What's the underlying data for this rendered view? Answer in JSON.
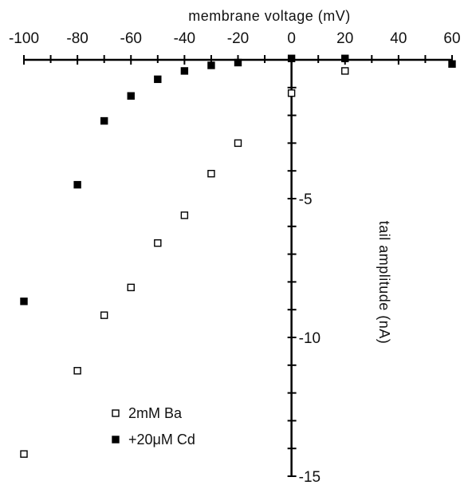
{
  "chart_data": {
    "type": "scatter",
    "title": "",
    "xlabel": "membrane voltage (mV)",
    "ylabel": "tail amplitude (nA)",
    "xlim": [
      -100,
      60
    ],
    "ylim": [
      -15,
      0
    ],
    "x_ticks": [
      -100,
      -80,
      -60,
      -40,
      -20,
      0,
      20,
      40,
      60
    ],
    "x_tick_labels": [
      "-100",
      "-80",
      "-60",
      "-40",
      "-20",
      "0",
      "20",
      "40",
      "60"
    ],
    "y_ticks": [
      -5,
      -10,
      -15
    ],
    "y_tick_labels": [
      "-5",
      "-10",
      "-15"
    ],
    "x_axis_position": "top",
    "y_axis_at_x": 0,
    "grid": false,
    "legend_position": "bottom-left",
    "series": [
      {
        "name": "2mM Ba",
        "marker": "open-square",
        "color": "#000000",
        "x": [
          -100,
          -80,
          -70,
          -60,
          -50,
          -40,
          -30,
          -20,
          0,
          20
        ],
        "y": [
          -14.2,
          -11.2,
          -9.2,
          -8.2,
          -6.6,
          -5.6,
          -4.1,
          -3.0,
          -1.2,
          -0.4
        ]
      },
      {
        "name": "+20μM Cd",
        "marker": "filled-square",
        "color": "#000000",
        "x": [
          -100,
          -80,
          -70,
          -60,
          -50,
          -40,
          -30,
          -20,
          0,
          20,
          60
        ],
        "y": [
          -8.7,
          -4.5,
          -2.2,
          -1.3,
          -0.7,
          -0.4,
          -0.2,
          -0.1,
          0.05,
          0.05,
          -0.15
        ]
      }
    ]
  }
}
